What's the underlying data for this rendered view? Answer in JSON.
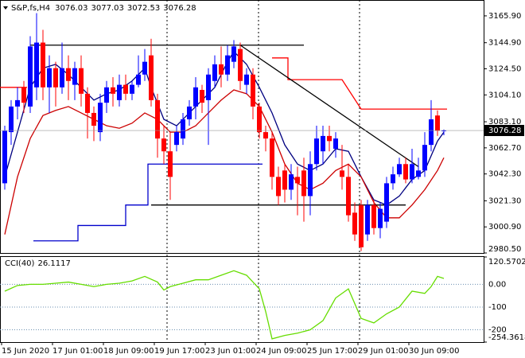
{
  "chart_data": [
    {
      "type": "candlestick",
      "title": "S&P,fs,H4",
      "up_color": "#0000ff",
      "down_color": "#ff0000",
      "open": [
        3035,
        3075,
        3095,
        3110,
        3095,
        3110,
        3145,
        3110,
        3125,
        3110,
        3125,
        3112,
        3125,
        3105,
        3090,
        3075,
        3098,
        3110,
        3100,
        3112,
        3105,
        3112,
        3120,
        3135,
        3100,
        3070,
        3060,
        3065,
        3070,
        3085,
        3095,
        3108,
        3100,
        3115,
        3128,
        3120,
        3130,
        3140,
        3112,
        3120,
        3095,
        3075,
        3070,
        3040,
        3045,
        3030,
        3040,
        3045,
        3025,
        3050,
        3060,
        3072,
        3062,
        3045,
        3040,
        3012,
        3018,
        2995,
        3018,
        3000,
        3005,
        3035,
        3042,
        3050,
        3038,
        3040,
        3045,
        3065,
        3088,
        3076.03
      ],
      "high": [
        3080,
        3100,
        3110,
        3115,
        3150,
        3168,
        3155,
        3135,
        3130,
        3145,
        3135,
        3130,
        3135,
        3110,
        3095,
        3105,
        3115,
        3118,
        3120,
        3120,
        3115,
        3135,
        3140,
        3148,
        3105,
        3080,
        3075,
        3080,
        3090,
        3100,
        3118,
        3112,
        3125,
        3135,
        3142,
        3143,
        3147,
        3145,
        3125,
        3125,
        3098,
        3080,
        3075,
        3048,
        3050,
        3050,
        3048,
        3055,
        3060,
        3080,
        3080,
        3080,
        3075,
        3065,
        3050,
        3020,
        3022,
        3022,
        3022,
        3020,
        3040,
        3048,
        3055,
        3055,
        3062,
        3055,
        3075,
        3100,
        3092,
        3077.03
      ],
      "low": [
        3030,
        3065,
        3085,
        3090,
        3090,
        3100,
        3100,
        3090,
        3095,
        3105,
        3100,
        3100,
        3095,
        3070,
        3068,
        3068,
        3090,
        3095,
        3095,
        3100,
        3100,
        3110,
        3115,
        3095,
        3055,
        3050,
        3022,
        3060,
        3065,
        3080,
        3085,
        3090,
        3065,
        3110,
        3110,
        3115,
        3125,
        3108,
        3105,
        3085,
        3070,
        3060,
        3030,
        3018,
        3020,
        3022,
        3010,
        3005,
        3010,
        3045,
        3050,
        3060,
        3055,
        3030,
        3005,
        2990,
        2982,
        2990,
        2995,
        2992,
        3000,
        3030,
        3040,
        3035,
        3035,
        3038,
        3040,
        3060,
        3072,
        3072.53
      ],
      "close": [
        3076,
        3095,
        3100,
        3098,
        3142,
        3145,
        3110,
        3125,
        3110,
        3125,
        3115,
        3125,
        3105,
        3090,
        3080,
        3098,
        3110,
        3105,
        3112,
        3105,
        3112,
        3120,
        3130,
        3100,
        3070,
        3060,
        3040,
        3075,
        3085,
        3095,
        3110,
        3098,
        3120,
        3128,
        3120,
        3135,
        3142,
        3115,
        3120,
        3095,
        3075,
        3070,
        3040,
        3025,
        3030,
        3042,
        3035,
        3025,
        3050,
        3070,
        3072,
        3068,
        3070,
        3040,
        3010,
        2995,
        2985,
        3018,
        3000,
        3015,
        3035,
        3042,
        3050,
        3038,
        3050,
        3045,
        3065,
        3085,
        3076,
        3076.28
      ],
      "xticks": [
        {
          "value": 0,
          "label": "15 Jun 2020"
        },
        {
          "value": 8,
          "label": "17 Jun 01:00"
        },
        {
          "value": 16,
          "label": "18 Jun 09:00"
        },
        {
          "value": 24,
          "label": "19 Jun 17:00"
        },
        {
          "value": 32,
          "label": "23 Jun 01:00"
        },
        {
          "value": 40,
          "label": "24 Jun 09:00"
        },
        {
          "value": 48,
          "label": "25 Jun 17:00"
        },
        {
          "value": 56,
          "label": "29 Jun 01:00"
        },
        {
          "value": 64,
          "label": "30 Jun 09:00"
        }
      ],
      "ylim": [
        2980.5,
        3178.3
      ],
      "yticks": [
        {
          "value": 3165.9,
          "label": "3165.90"
        },
        {
          "value": 3144.9,
          "label": "3144.90"
        },
        {
          "value": 3124.5,
          "label": "3124.50"
        },
        {
          "value": 3104.1,
          "label": "3104.10"
        },
        {
          "value": 3083.1,
          "label": "3083.10"
        },
        {
          "value": 3062.7,
          "label": "3062.70"
        },
        {
          "value": 3042.3,
          "label": "3042.30"
        },
        {
          "value": 3021.3,
          "label": "3021.30"
        },
        {
          "value": 3000.9,
          "label": "3000.90"
        },
        {
          "value": 2980.5,
          "label": "2980.50"
        }
      ],
      "overlays": [
        {
          "color": "#000080",
          "x": [
            0,
            2,
            4,
            6,
            8,
            10,
            12,
            14,
            16,
            18,
            20,
            22,
            23,
            25,
            27,
            29,
            31,
            33,
            35,
            36,
            38,
            40,
            42,
            44,
            46,
            48,
            50,
            52,
            54,
            56,
            58,
            60,
            62,
            64,
            66,
            68,
            69
          ],
          "values": [
            3040,
            3075,
            3110,
            3125,
            3128,
            3120,
            3110,
            3100,
            3105,
            3108,
            3115,
            3125,
            3110,
            3085,
            3080,
            3090,
            3100,
            3110,
            3130,
            3138,
            3128,
            3110,
            3090,
            3065,
            3050,
            3045,
            3050,
            3062,
            3060,
            3040,
            3022,
            3018,
            3025,
            3038,
            3045,
            3068,
            3075
          ]
        },
        {
          "color": "#cc0000",
          "x": [
            0,
            2,
            4,
            6,
            8,
            10,
            12,
            14,
            16,
            18,
            20,
            22,
            24,
            26,
            28,
            30,
            32,
            34,
            36,
            38,
            40,
            42,
            44,
            46,
            48,
            50,
            52,
            54,
            56,
            58,
            60,
            62,
            64,
            66,
            68,
            69
          ],
          "values": [
            2995,
            3040,
            3070,
            3088,
            3092,
            3095,
            3090,
            3085,
            3080,
            3078,
            3082,
            3090,
            3085,
            3075,
            3075,
            3080,
            3090,
            3100,
            3108,
            3105,
            3095,
            3075,
            3050,
            3035,
            3030,
            3035,
            3045,
            3050,
            3040,
            3020,
            3008,
            3008,
            3018,
            3030,
            3045,
            3055
          ]
        },
        {
          "color": "#ff0000",
          "x": [
            -1,
            3.5
          ],
          "values": [
            3110,
            3110
          ]
        },
        {
          "color": "#ff0000",
          "x": [
            42,
            44.5,
            44.5,
            53,
            56,
            69.5
          ],
          "values": [
            3133,
            3133,
            3116,
            3116,
            3093,
            3093
          ]
        },
        {
          "color": "#0000cc",
          "x": [
            4.5,
            11.5,
            11.5,
            19,
            19,
            22.5,
            22.5,
            40.5
          ],
          "values": [
            2990,
            2990,
            3002,
            3002,
            3018,
            3018,
            3050,
            3050
          ]
        },
        {
          "color": "#000000",
          "x": [
            4,
            47
          ],
          "values": [
            3143,
            3143
          ]
        },
        {
          "color": "#000000",
          "x": [
            23,
            63
          ],
          "values": [
            3018,
            3018
          ]
        },
        {
          "color": "#000000",
          "x": [
            37,
            65
          ],
          "values": [
            3143,
            3048
          ]
        }
      ]
    },
    {
      "type": "line",
      "title": "CCI(40)",
      "color": "#66dd00",
      "x": [
        0,
        2,
        4,
        6,
        8,
        10,
        12,
        14,
        16,
        18,
        20,
        22,
        24,
        25,
        26,
        28,
        30,
        32,
        34,
        36,
        38,
        40,
        41,
        42,
        44,
        46,
        48,
        50,
        52,
        54,
        56,
        58,
        60,
        62,
        64,
        66,
        67,
        68,
        69
      ],
      "values": [
        -30,
        -5,
        0,
        0,
        5,
        10,
        0,
        -10,
        0,
        5,
        15,
        35,
        10,
        -25,
        -10,
        5,
        20,
        20,
        40,
        60,
        40,
        -20,
        -120,
        -240,
        -225,
        -215,
        -200,
        -160,
        -60,
        -20,
        -150,
        -170,
        -130,
        -100,
        -30,
        -40,
        -10,
        35,
        26.1117
      ],
      "ylim": [
        -254.3618,
        120.5702
      ],
      "yticks": [
        120.5702,
        {
          "value": 0,
          "label": "0.00"
        },
        -100,
        -200,
        -254.3618
      ]
    }
  ]
}
